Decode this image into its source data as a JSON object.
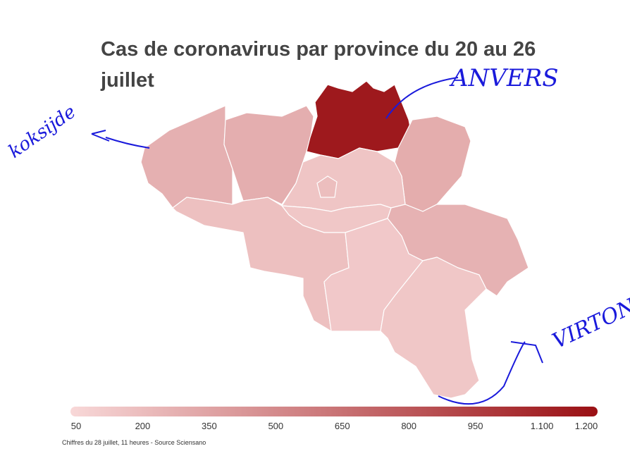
{
  "chart_data": {
    "type": "choropleth",
    "title": "Cas de coronavirus par province du 20 au 26 juillet",
    "source": "Chiffres du 28 juillet, 11 heures - Source Sciensano",
    "values": [
      280,
      290,
      1150,
      300,
      160,
      200,
      150,
      190,
      270,
      140,
      150
    ],
    "colorlim": [
      50,
      1200
    ],
    "colors": [
      "#f8d8d8",
      "#9a1014"
    ],
    "cticks": [
      50,
      200,
      350,
      500,
      650,
      800,
      950,
      {
        "value": 1100,
        "label": "1.100"
      },
      {
        "value": 1200,
        "label": "1.200"
      }
    ],
    "annotations": [
      "koksijde",
      "ANVERS",
      "VIRTON"
    ]
  }
}
